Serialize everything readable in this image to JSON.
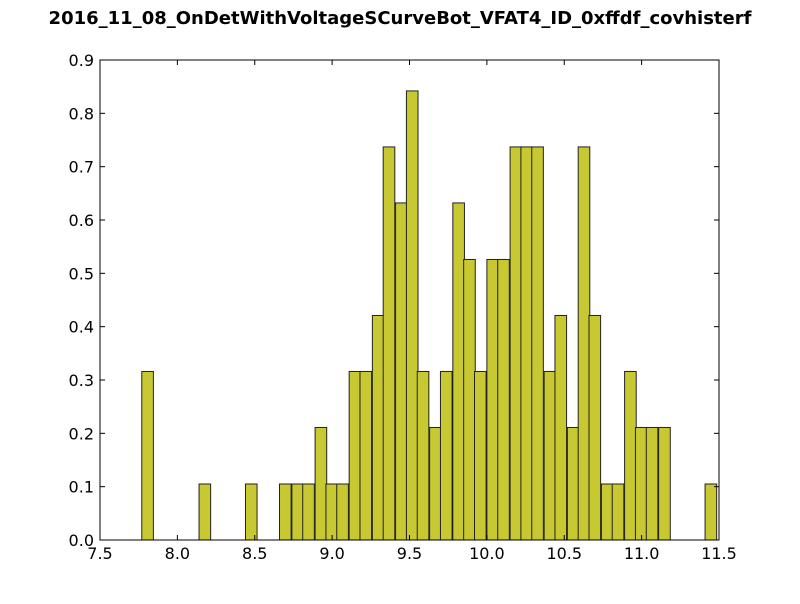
{
  "chart_data": {
    "type": "bar",
    "title": "2016_11_08_OnDetWithVoltageSCurveBot_VFAT4_ID_0xffdf_covhisterf",
    "xlabel": "",
    "ylabel": "",
    "xlim": [
      7.5,
      11.5
    ],
    "ylim": [
      0.0,
      0.9
    ],
    "bin_width": 0.075,
    "x_ticks": [
      "7.5",
      "8.0",
      "8.5",
      "9.0",
      "9.5",
      "10.0",
      "10.5",
      "11.0",
      "11.5"
    ],
    "y_ticks": [
      "0.0",
      "0.1",
      "0.2",
      "0.3",
      "0.4",
      "0.5",
      "0.6",
      "0.7",
      "0.8",
      "0.9"
    ],
    "grid": false,
    "bar_color": "#c8c832",
    "edge_color": "#222222",
    "bins": [
      {
        "x": 7.77,
        "value": 0.316
      },
      {
        "x": 8.14,
        "value": 0.105
      },
      {
        "x": 8.44,
        "value": 0.105
      },
      {
        "x": 8.66,
        "value": 0.105
      },
      {
        "x": 8.74,
        "value": 0.105
      },
      {
        "x": 8.81,
        "value": 0.105
      },
      {
        "x": 8.89,
        "value": 0.211
      },
      {
        "x": 8.96,
        "value": 0.105
      },
      {
        "x": 9.03,
        "value": 0.105
      },
      {
        "x": 9.11,
        "value": 0.316
      },
      {
        "x": 9.18,
        "value": 0.316
      },
      {
        "x": 9.26,
        "value": 0.421
      },
      {
        "x": 9.33,
        "value": 0.737
      },
      {
        "x": 9.41,
        "value": 0.632
      },
      {
        "x": 9.48,
        "value": 0.842
      },
      {
        "x": 9.55,
        "value": 0.316
      },
      {
        "x": 9.63,
        "value": 0.211
      },
      {
        "x": 9.7,
        "value": 0.316
      },
      {
        "x": 9.78,
        "value": 0.632
      },
      {
        "x": 9.85,
        "value": 0.526
      },
      {
        "x": 9.92,
        "value": 0.316
      },
      {
        "x": 10.0,
        "value": 0.526
      },
      {
        "x": 10.07,
        "value": 0.526
      },
      {
        "x": 10.15,
        "value": 0.737
      },
      {
        "x": 10.22,
        "value": 0.737
      },
      {
        "x": 10.29,
        "value": 0.737
      },
      {
        "x": 10.37,
        "value": 0.316
      },
      {
        "x": 10.44,
        "value": 0.421
      },
      {
        "x": 10.52,
        "value": 0.211
      },
      {
        "x": 10.59,
        "value": 0.737
      },
      {
        "x": 10.66,
        "value": 0.421
      },
      {
        "x": 10.74,
        "value": 0.105
      },
      {
        "x": 10.81,
        "value": 0.105
      },
      {
        "x": 10.89,
        "value": 0.316
      },
      {
        "x": 10.96,
        "value": 0.211
      },
      {
        "x": 11.03,
        "value": 0.211
      },
      {
        "x": 11.11,
        "value": 0.211
      },
      {
        "x": 11.41,
        "value": 0.105
      }
    ]
  }
}
